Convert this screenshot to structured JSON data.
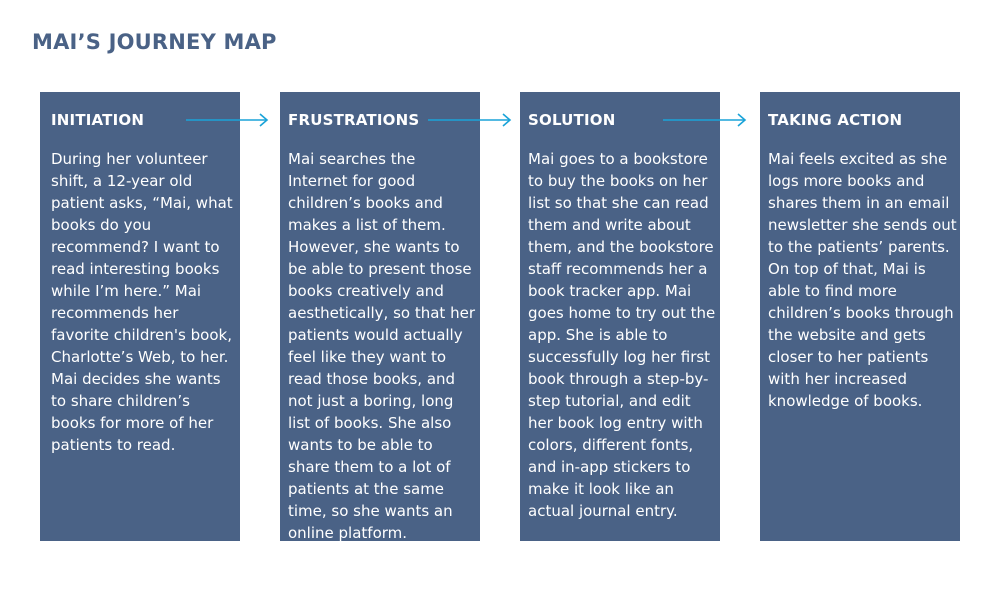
{
  "title": "MAI’S JOURNEY MAP",
  "colors": {
    "card_bg": "#4a6286",
    "title": "#4a6286",
    "arrow": "#1aa3d8",
    "text_on_card": "#ffffff"
  },
  "stages": [
    {
      "heading": "INITIATION",
      "body": "During her volunteer shift, a 12-year old patient asks, “Mai, what books do you recommend? I want to read interesting books while I’m here.” Mai recommends her favorite children's book, Charlotte’s Web, to her. Mai decides she wants to share children’s books for more of her patients to read."
    },
    {
      "heading": "FRUSTRATIONS",
      "body": "Mai searches the Internet for good children’s books and makes a list of them. However, she wants to be able to present those books creatively and aesthetically, so that her patients would actually feel like they want to read those books, and not just a boring, long list of books. She also wants to be able to share them to a lot of patients at the same time, so she wants an online platform."
    },
    {
      "heading": "SOLUTION",
      "body": "Mai goes to a bookstore to buy the books on her list so that she can read them and write about them, and the bookstore staff recommends her a book tracker app. Mai goes home to try out the app. She is able to successfully log her first book through a step-by-step tutorial, and edit her book log entry with colors, different fonts, and in-app stickers to make it look like an actual journal entry."
    },
    {
      "heading": "TAKING ACTION",
      "body": "Mai feels excited as she logs more books and shares them in an email newsletter she sends out to the patients’ parents. On top of that, Mai is able to find more children’s books through the website and gets closer to her patients with her increased knowledge of books."
    }
  ]
}
